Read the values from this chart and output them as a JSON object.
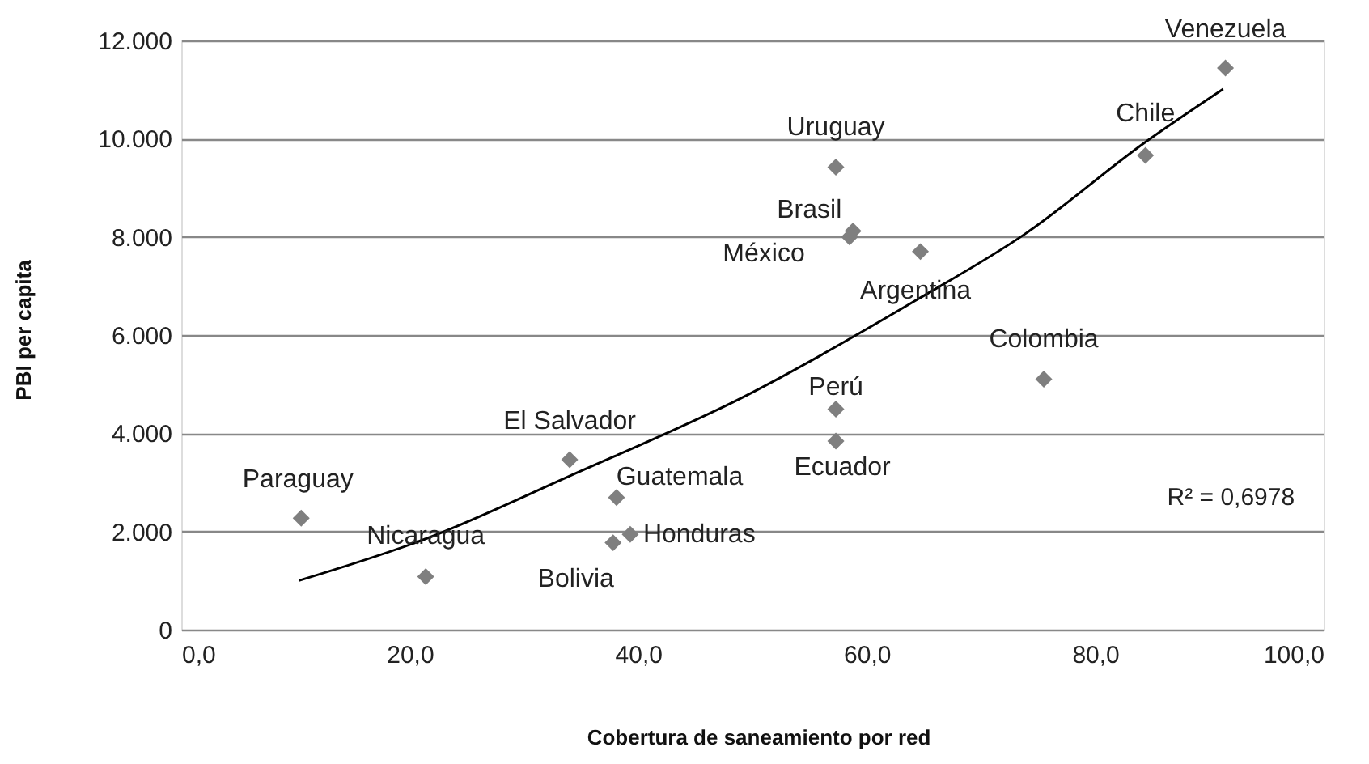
{
  "chart_data": {
    "type": "scatter",
    "xlabel": "Cobertura de saneamiento por red",
    "ylabel": "PBI per capita",
    "xlim": [
      0,
      100
    ],
    "xticks": [
      {
        "value": 0,
        "label": "0,0"
      },
      {
        "value": 20,
        "label": "20,0"
      },
      {
        "value": 40,
        "label": "40,0"
      },
      {
        "value": 60,
        "label": "60,0"
      },
      {
        "value": 80,
        "label": "80,0"
      },
      {
        "value": 100,
        "label": "100,0"
      }
    ],
    "ylim": [
      0,
      12000
    ],
    "yticks": [
      0,
      {
        "value": 2000,
        "label": "2.000"
      },
      {
        "value": 4000,
        "label": "4.000"
      },
      {
        "value": 6000,
        "label": "6.000"
      },
      {
        "value": 8000,
        "label": "8.000"
      },
      {
        "value": 10000,
        "label": "10.000"
      },
      {
        "value": 12000,
        "label": "12.000"
      }
    ],
    "grid": "y",
    "legend": false,
    "series": [
      {
        "marker": "diamond",
        "color": "#7f7f7f",
        "x": [
          10.5,
          21.4,
          34.0,
          38.1,
          39.3,
          37.8,
          57.3,
          58.8,
          58.5,
          64.7,
          75.5,
          57.3,
          57.3,
          84.4,
          91.4
        ],
        "values": [
          2270,
          1080,
          3460,
          2690,
          1940,
          1770,
          9420,
          8120,
          8000,
          7700,
          5100,
          4490,
          3840,
          9660,
          11440
        ]
      },
      {
        "type": "line",
        "marker": "none",
        "line_style": "solid",
        "color": "#000000",
        "x": [
          10.3,
          21.4,
          34.0,
          49.3,
          64.4,
          73.8,
          84.4,
          91.2
        ],
        "values": [
          1000,
          1850,
          3130,
          4750,
          6720,
          8050,
          9930,
          11010
        ]
      }
    ],
    "annotations": [
      {
        "text": "Paraguay",
        "x": 10.5,
        "y": 2270
      },
      {
        "text": "Nicaragua",
        "x": 21.4,
        "y": 1080
      },
      {
        "text": "El Salvador",
        "x": 34.0,
        "y": 3460
      },
      {
        "text": "Guatemala",
        "x": 38.1,
        "y": 2690
      },
      {
        "text": "Honduras",
        "x": 39.3,
        "y": 1940
      },
      {
        "text": "Bolivia",
        "x": 37.8,
        "y": 1770
      },
      {
        "text": "Uruguay",
        "x": 57.3,
        "y": 9420
      },
      {
        "text": "Brasil",
        "x": 58.8,
        "y": 8120
      },
      {
        "text": "México",
        "x": 58.5,
        "y": 8000
      },
      {
        "text": "Argentina",
        "x": 64.7,
        "y": 7700
      },
      {
        "text": "Colombia",
        "x": 75.5,
        "y": 5100
      },
      {
        "text": "Perú",
        "x": 57.3,
        "y": 4490
      },
      {
        "text": "Ecuador",
        "x": 57.3,
        "y": 3840
      },
      {
        "text": "Chile",
        "x": 84.4,
        "y": 9660
      },
      {
        "text": "Venezuela",
        "x": 91.4,
        "y": 11440
      },
      "R² = 0,6978"
    ]
  }
}
